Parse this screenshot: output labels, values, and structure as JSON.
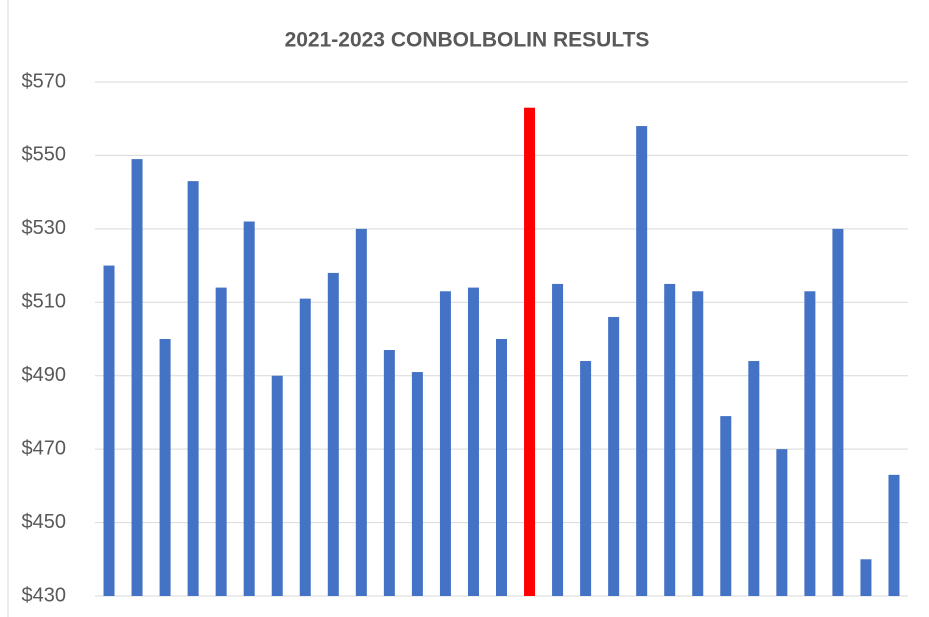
{
  "chart_data": {
    "type": "bar",
    "title": "2021-2023 CONBOLBOLIN RESULTS",
    "categories": [
      null,
      null,
      null,
      null,
      null,
      null,
      null,
      null,
      null,
      null,
      null,
      null,
      null,
      null,
      null,
      null,
      null,
      null,
      null,
      null,
      null,
      null,
      null,
      null,
      null,
      null,
      null,
      null,
      null
    ],
    "values": [
      520,
      549,
      500,
      543,
      514,
      532,
      490,
      511,
      518,
      530,
      497,
      491,
      513,
      514,
      500,
      563,
      515,
      494,
      506,
      558,
      515,
      513,
      479,
      494,
      470,
      513,
      530,
      440,
      463
    ],
    "colors": [
      "#4472c4",
      "#4472c4",
      "#4472c4",
      "#4472c4",
      "#4472c4",
      "#4472c4",
      "#4472c4",
      "#4472c4",
      "#4472c4",
      "#4472c4",
      "#4472c4",
      "#4472c4",
      "#4472c4",
      "#4472c4",
      "#4472c4",
      "#ff0000",
      "#4472c4",
      "#4472c4",
      "#4472c4",
      "#4472c4",
      "#4472c4",
      "#4472c4",
      "#4472c4",
      "#4472c4",
      "#4472c4",
      "#4472c4",
      "#4472c4",
      "#4472c4",
      "#4472c4"
    ],
    "ylim": [
      430,
      570
    ],
    "yticks": [
      {
        "value": 430,
        "label": "$430"
      },
      {
        "value": 450,
        "label": "$450"
      },
      {
        "value": 470,
        "label": "$470"
      },
      {
        "value": 490,
        "label": "$490"
      },
      {
        "value": 510,
        "label": "$510"
      },
      {
        "value": 530,
        "label": "$530"
      },
      {
        "value": 550,
        "label": "$550"
      },
      {
        "value": 570,
        "label": "$570"
      }
    ],
    "grid": true
  }
}
